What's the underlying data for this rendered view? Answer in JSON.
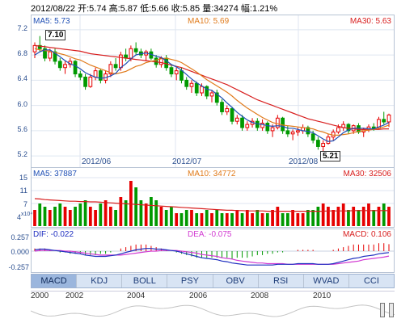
{
  "header": {
    "text": "2012/08/22 开:5.74 高:5.87 低:5.66 收:5.85 量:34274 幅:1.21%"
  },
  "colors": {
    "up": "#e60000",
    "down": "#009900",
    "ma5": "#1f4fb5",
    "ma10": "#e07a1a",
    "ma30": "#d81e1e",
    "dif": "#1f2fc0",
    "dea": "#d23ad2"
  },
  "price_panel": {
    "ma5_label": "MA5: 5.73",
    "ma10_label": "MA10: 5.69",
    "ma30_label": "MA30: 5.63",
    "yticks": [
      "7.2",
      "6.8",
      "6.4",
      "6.0",
      "5.6",
      "5.2"
    ],
    "xticks": [
      "2012/06",
      "2012/07",
      "2012/08"
    ],
    "annot_high": "7.10",
    "annot_low": "5.21"
  },
  "volume_panel": {
    "ma5_label": "MA5: 37887",
    "ma10_label": "MA10: 34772",
    "ma30_label": "MA30: 32506",
    "yticks": [
      "15",
      "11",
      "7",
      "4"
    ],
    "unit": "x10⁴"
  },
  "macd_panel": {
    "dif_label": "DIF: -0.022",
    "dea_label": "DEA: -0.075",
    "macd_label": "MACD: 0.106",
    "yticks": [
      "0.257",
      "0.000",
      "-0.257"
    ]
  },
  "tabs": [
    "MACD",
    "KDJ",
    "BOLL",
    "PSY",
    "OBV",
    "RSI",
    "WVAD",
    "CCI"
  ],
  "timeline": {
    "years": [
      "2000",
      "2002",
      "2004",
      "2006",
      "2008",
      "2010"
    ]
  },
  "chart_data": {
    "type": "candlestick",
    "y_range": [
      5.1,
      7.3
    ],
    "candles": [
      [
        6.85,
        7.0,
        6.75,
        6.95
      ],
      [
        6.95,
        7.1,
        6.85,
        6.9
      ],
      [
        6.9,
        6.95,
        6.7,
        6.75
      ],
      [
        6.75,
        6.9,
        6.7,
        6.85
      ],
      [
        6.85,
        6.9,
        6.65,
        6.7
      ],
      [
        6.7,
        6.75,
        6.55,
        6.6
      ],
      [
        6.6,
        6.7,
        6.5,
        6.65
      ],
      [
        6.65,
        6.75,
        6.6,
        6.7
      ],
      [
        6.7,
        6.72,
        6.45,
        6.5
      ],
      [
        6.5,
        6.55,
        6.4,
        6.45
      ],
      [
        6.45,
        6.5,
        6.25,
        6.3
      ],
      [
        6.3,
        6.5,
        6.28,
        6.45
      ],
      [
        6.45,
        6.6,
        6.4,
        6.55
      ],
      [
        6.55,
        6.58,
        6.35,
        6.4
      ],
      [
        6.4,
        6.55,
        6.35,
        6.5
      ],
      [
        6.5,
        6.7,
        6.45,
        6.65
      ],
      [
        6.65,
        6.75,
        6.55,
        6.6
      ],
      [
        6.6,
        6.85,
        6.55,
        6.8
      ],
      [
        6.8,
        6.9,
        6.7,
        6.75
      ],
      [
        6.75,
        6.95,
        6.7,
        6.9
      ],
      [
        6.9,
        7.0,
        6.8,
        6.85
      ],
      [
        6.85,
        6.9,
        6.75,
        6.8
      ],
      [
        6.8,
        6.88,
        6.7,
        6.85
      ],
      [
        6.85,
        6.9,
        6.72,
        6.75
      ],
      [
        6.75,
        6.8,
        6.6,
        6.65
      ],
      [
        6.65,
        6.78,
        6.6,
        6.75
      ],
      [
        6.75,
        6.8,
        6.55,
        6.6
      ],
      [
        6.6,
        6.65,
        6.45,
        6.5
      ],
      [
        6.5,
        6.6,
        6.4,
        6.55
      ],
      [
        6.55,
        6.6,
        6.35,
        6.4
      ],
      [
        6.4,
        6.45,
        6.25,
        6.3
      ],
      [
        6.3,
        6.4,
        6.2,
        6.35
      ],
      [
        6.35,
        6.38,
        6.15,
        6.2
      ],
      [
        6.2,
        6.35,
        6.15,
        6.3
      ],
      [
        6.3,
        6.32,
        6.1,
        6.15
      ],
      [
        6.15,
        6.25,
        6.05,
        6.2
      ],
      [
        6.2,
        6.25,
        6.0,
        6.05
      ],
      [
        6.05,
        6.1,
        5.85,
        5.9
      ],
      [
        5.9,
        6.0,
        5.85,
        5.95
      ],
      [
        5.95,
        5.98,
        5.7,
        5.75
      ],
      [
        5.75,
        5.85,
        5.7,
        5.8
      ],
      [
        5.8,
        5.85,
        5.6,
        5.65
      ],
      [
        5.65,
        5.75,
        5.6,
        5.7
      ],
      [
        5.7,
        5.8,
        5.65,
        5.75
      ],
      [
        5.75,
        5.8,
        5.6,
        5.65
      ],
      [
        5.65,
        5.78,
        5.6,
        5.72
      ],
      [
        5.72,
        5.75,
        5.55,
        5.6
      ],
      [
        5.6,
        5.7,
        5.5,
        5.65
      ],
      [
        5.65,
        5.85,
        5.62,
        5.8
      ],
      [
        5.8,
        5.82,
        5.55,
        5.6
      ],
      [
        5.6,
        5.68,
        5.5,
        5.55
      ],
      [
        5.55,
        5.62,
        5.45,
        5.58
      ],
      [
        5.58,
        5.65,
        5.52,
        5.6
      ],
      [
        5.6,
        5.7,
        5.55,
        5.65
      ],
      [
        5.65,
        5.68,
        5.5,
        5.55
      ],
      [
        5.55,
        5.6,
        5.4,
        5.45
      ],
      [
        5.45,
        5.5,
        5.3,
        5.35
      ],
      [
        5.35,
        5.45,
        5.21,
        5.4
      ],
      [
        5.4,
        5.55,
        5.38,
        5.5
      ],
      [
        5.5,
        5.62,
        5.45,
        5.58
      ],
      [
        5.58,
        5.7,
        5.55,
        5.65
      ],
      [
        5.65,
        5.75,
        5.6,
        5.7
      ],
      [
        5.7,
        5.72,
        5.55,
        5.6
      ],
      [
        5.6,
        5.7,
        5.55,
        5.68
      ],
      [
        5.68,
        5.72,
        5.55,
        5.58
      ],
      [
        5.58,
        5.65,
        5.5,
        5.62
      ],
      [
        5.62,
        5.7,
        5.58,
        5.66
      ],
      [
        5.66,
        5.72,
        5.6,
        5.64
      ],
      [
        5.64,
        5.82,
        5.62,
        5.78
      ],
      [
        5.78,
        5.9,
        5.7,
        5.74
      ],
      [
        5.74,
        5.87,
        5.66,
        5.85
      ]
    ],
    "volumes": [
      5,
      7,
      6,
      5,
      6,
      7,
      6,
      5,
      6,
      7,
      8,
      6,
      5,
      7,
      8,
      6,
      5,
      9,
      8,
      14,
      12,
      8,
      7,
      9,
      8,
      6,
      5,
      6,
      4,
      4,
      5,
      5,
      4,
      4,
      5,
      4,
      5,
      4,
      4,
      4,
      5,
      4,
      5,
      4,
      5,
      4,
      4,
      5,
      6,
      4,
      4,
      5,
      4,
      4,
      5,
      5,
      6,
      7,
      6,
      5,
      6,
      7,
      5,
      6,
      5,
      6,
      7,
      5,
      6,
      7,
      6
    ],
    "ma5": [
      6.8,
      6.85,
      6.88,
      6.88,
      6.83,
      6.77,
      6.71,
      6.66,
      6.63,
      6.58,
      6.52,
      6.48,
      6.45,
      6.43,
      6.44,
      6.47,
      6.51,
      6.6,
      6.66,
      6.74,
      6.8,
      6.82,
      6.83,
      6.81,
      6.78,
      6.76,
      6.71,
      6.65,
      6.61,
      6.56,
      6.49,
      6.42,
      6.36,
      6.31,
      6.26,
      6.24,
      6.18,
      6.12,
      6.04,
      5.97,
      5.89,
      5.83,
      5.77,
      5.73,
      5.71,
      5.7,
      5.68,
      5.67,
      5.68,
      5.67,
      5.64,
      5.64,
      5.62,
      5.6,
      5.59,
      5.57,
      5.52,
      5.47,
      5.43,
      5.44,
      5.5,
      5.57,
      5.61,
      5.64,
      5.64,
      5.64,
      5.63,
      5.63,
      5.66,
      5.69,
      5.73
    ],
    "ma10": [
      6.9,
      6.88,
      6.87,
      6.86,
      6.84,
      6.82,
      6.8,
      6.77,
      6.74,
      6.72,
      6.68,
      6.64,
      6.61,
      6.58,
      6.55,
      6.52,
      6.5,
      6.52,
      6.54,
      6.58,
      6.62,
      6.64,
      6.68,
      6.7,
      6.72,
      6.74,
      6.75,
      6.73,
      6.71,
      6.68,
      6.63,
      6.58,
      6.53,
      6.47,
      6.41,
      6.36,
      6.31,
      6.26,
      6.21,
      6.15,
      6.08,
      6.02,
      5.96,
      5.91,
      5.86,
      5.81,
      5.77,
      5.73,
      5.71,
      5.69,
      5.68,
      5.67,
      5.66,
      5.65,
      5.64,
      5.63,
      5.6,
      5.58,
      5.55,
      5.53,
      5.53,
      5.54,
      5.55,
      5.57,
      5.59,
      5.6,
      5.61,
      5.62,
      5.64,
      5.66,
      5.69
    ],
    "ma30": [
      6.95,
      6.94,
      6.93,
      6.92,
      6.91,
      6.9,
      6.89,
      6.88,
      6.87,
      6.86,
      6.84,
      6.82,
      6.81,
      6.8,
      6.79,
      6.78,
      6.77,
      6.76,
      6.75,
      6.74,
      6.73,
      6.72,
      6.71,
      6.7,
      6.69,
      6.68,
      6.66,
      6.64,
      6.62,
      6.6,
      6.57,
      6.54,
      6.51,
      6.48,
      6.45,
      6.42,
      6.39,
      6.36,
      6.33,
      6.29,
      6.25,
      6.21,
      6.17,
      6.13,
      6.09,
      6.06,
      6.03,
      6.0,
      5.97,
      5.94,
      5.91,
      5.88,
      5.85,
      5.82,
      5.79,
      5.77,
      5.75,
      5.73,
      5.71,
      5.69,
      5.67,
      5.65,
      5.64,
      5.63,
      5.62,
      5.62,
      5.62,
      5.62,
      5.62,
      5.63,
      5.63
    ],
    "vol_ma": [
      8.5,
      8.4,
      8.2,
      8.1,
      8.0,
      7.9,
      7.8,
      7.7,
      7.7,
      7.6,
      7.6,
      7.5,
      7.5,
      7.4,
      7.3,
      7.2,
      7.1,
      7.0,
      6.9,
      6.8,
      6.7,
      6.6,
      6.5,
      6.4,
      6.3,
      6.2,
      6.1,
      6.0,
      5.9,
      5.8,
      5.7,
      5.6,
      5.5,
      5.4,
      5.3,
      5.2,
      5.1,
      5.0,
      4.9,
      4.9,
      4.8,
      4.8,
      4.7,
      4.7,
      4.7,
      4.7,
      4.6,
      4.6,
      4.6,
      4.6,
      4.6,
      4.6,
      4.6,
      4.6,
      4.6,
      4.6,
      4.6,
      4.6,
      4.7,
      4.7,
      4.7,
      4.7,
      4.7,
      4.8,
      4.8,
      4.8,
      4.8,
      4.8,
      4.8,
      4.8,
      4.8
    ],
    "macd_range": [
      -0.257,
      0.257
    ],
    "dif": [
      0.02,
      0.03,
      0.03,
      0.02,
      0.01,
      0.0,
      -0.01,
      -0.02,
      -0.03,
      -0.04,
      -0.06,
      -0.07,
      -0.08,
      -0.08,
      -0.08,
      -0.07,
      -0.06,
      -0.04,
      -0.02,
      0.0,
      0.02,
      0.03,
      0.04,
      0.04,
      0.03,
      0.03,
      0.02,
      0.01,
      0.0,
      -0.02,
      -0.04,
      -0.06,
      -0.08,
      -0.1,
      -0.11,
      -0.12,
      -0.13,
      -0.15,
      -0.16,
      -0.18,
      -0.19,
      -0.2,
      -0.21,
      -0.21,
      -0.21,
      -0.21,
      -0.21,
      -0.21,
      -0.2,
      -0.2,
      -0.2,
      -0.2,
      -0.19,
      -0.19,
      -0.19,
      -0.19,
      -0.2,
      -0.2,
      -0.2,
      -0.19,
      -0.17,
      -0.15,
      -0.13,
      -0.11,
      -0.1,
      -0.08,
      -0.07,
      -0.06,
      -0.04,
      -0.03,
      -0.022
    ],
    "dea": [
      0.0,
      0.01,
      0.01,
      0.01,
      0.01,
      0.01,
      0.0,
      0.0,
      -0.01,
      -0.02,
      -0.03,
      -0.04,
      -0.05,
      -0.06,
      -0.06,
      -0.06,
      -0.06,
      -0.06,
      -0.05,
      -0.04,
      -0.03,
      -0.02,
      -0.01,
      0.0,
      0.0,
      0.01,
      0.01,
      0.01,
      0.01,
      0.0,
      -0.01,
      -0.02,
      -0.03,
      -0.05,
      -0.06,
      -0.07,
      -0.08,
      -0.1,
      -0.11,
      -0.12,
      -0.14,
      -0.15,
      -0.16,
      -0.17,
      -0.18,
      -0.18,
      -0.19,
      -0.19,
      -0.19,
      -0.19,
      -0.2,
      -0.2,
      -0.2,
      -0.2,
      -0.2,
      -0.2,
      -0.2,
      -0.2,
      -0.2,
      -0.2,
      -0.19,
      -0.18,
      -0.17,
      -0.16,
      -0.15,
      -0.13,
      -0.12,
      -0.11,
      -0.1,
      -0.09,
      -0.075
    ]
  }
}
